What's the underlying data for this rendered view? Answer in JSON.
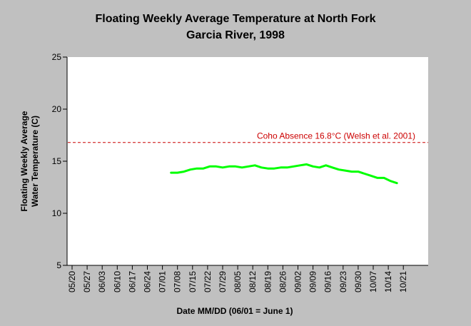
{
  "chart_data": {
    "type": "line",
    "title_lines": [
      "Floating Weekly Average Temperature at North Fork",
      "Garcia River, 1998"
    ],
    "xlabel": "Date MM/DD (06/01 = June 1)",
    "ylabel_lines": [
      "Floating Weekly Average",
      "Water Temperature (C)"
    ],
    "x_tick_labels": [
      "05/20",
      "05/27",
      "06/03",
      "06/10",
      "06/17",
      "06/24",
      "07/01",
      "07/08",
      "07/15",
      "07/22",
      "07/29",
      "08/05",
      "08/12",
      "08/19",
      "08/26",
      "09/02",
      "09/09",
      "09/16",
      "09/23",
      "09/30",
      "10/07",
      "10/14",
      "10/21"
    ],
    "ylim": [
      5,
      25
    ],
    "y_ticks": [
      5,
      10,
      15,
      20,
      25
    ],
    "grid": false,
    "reference_line": {
      "label": "Coho Absence 16.8°C (Welsh et al. 2001)",
      "value": 16.8,
      "color": "#cc0000"
    },
    "series": [
      {
        "color": "#00ff00",
        "x": [
          "07/05",
          "07/08",
          "07/11",
          "07/14",
          "07/17",
          "07/20",
          "07/23",
          "07/26",
          "07/29",
          "08/01",
          "08/04",
          "08/07",
          "08/10",
          "08/13",
          "08/16",
          "08/19",
          "08/22",
          "08/25",
          "08/28",
          "08/31",
          "09/03",
          "09/06",
          "09/09",
          "09/12",
          "09/15",
          "09/18",
          "09/21",
          "09/24",
          "09/27",
          "09/30",
          "10/03",
          "10/06",
          "10/09",
          "10/12",
          "10/15",
          "10/18"
        ],
        "y": [
          13.9,
          13.9,
          14.0,
          14.2,
          14.3,
          14.3,
          14.5,
          14.5,
          14.4,
          14.5,
          14.5,
          14.4,
          14.5,
          14.6,
          14.4,
          14.3,
          14.3,
          14.4,
          14.4,
          14.5,
          14.6,
          14.7,
          14.5,
          14.4,
          14.6,
          14.4,
          14.2,
          14.1,
          14.0,
          14.0,
          13.8,
          13.6,
          13.4,
          13.4,
          13.1,
          12.9
        ]
      }
    ]
  }
}
